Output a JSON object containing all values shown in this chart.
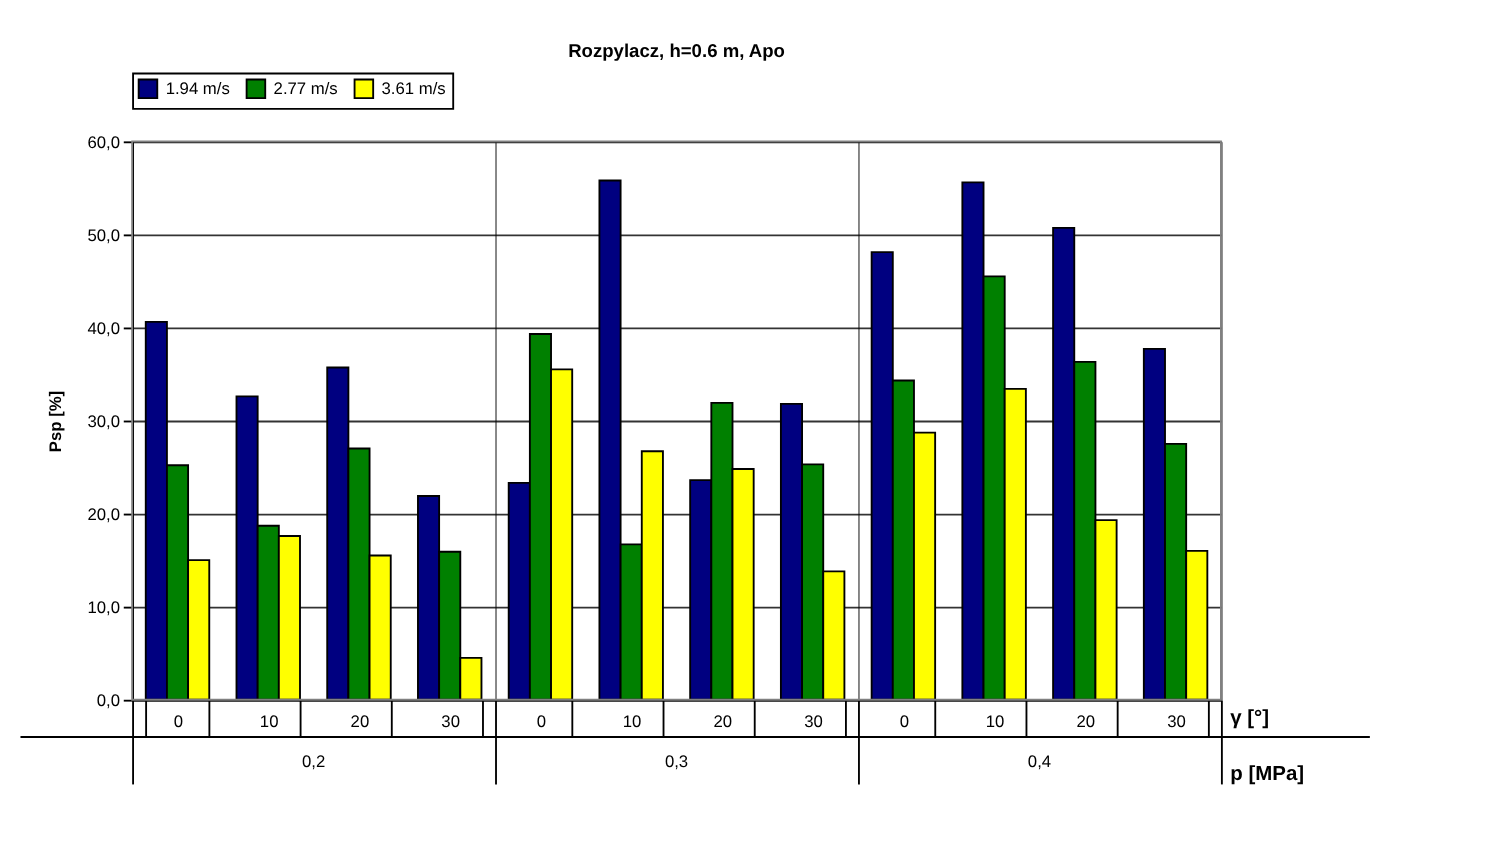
{
  "chart_data": {
    "type": "bar",
    "title": "Rozpylacz, h=0.6 m, Apo",
    "xlabel": "γ [°]",
    "ylabel": "Psp [%]",
    "categories": [
      "0",
      "10",
      "20",
      "30",
      "0",
      "10",
      "20",
      "30",
      "0",
      "10",
      "20",
      "30"
    ],
    "series": [
      {
        "name": "1.94 m/s",
        "color": "#000080",
        "values": [
          40.6,
          32.6,
          35.7,
          21.9,
          23.3,
          55.8,
          23.6,
          31.8,
          48.1,
          55.6,
          50.7,
          37.7
        ]
      },
      {
        "name": "2.77 m/s",
        "color": "#008000",
        "values": [
          25.2,
          18.7,
          27.0,
          15.9,
          39.3,
          16.7,
          31.9,
          25.3,
          34.3,
          45.5,
          36.3,
          27.5
        ]
      },
      {
        "name": "3.61 m/s",
        "color": "#ffff00",
        "values": [
          15.0,
          17.6,
          15.5,
          4.5,
          35.5,
          26.7,
          24.8,
          13.8,
          28.7,
          33.4,
          19.3,
          16.0
        ]
      }
    ],
    "ylim": [
      0,
      60
    ],
    "yticks": [
      {
        "value": 0,
        "label": "0,0"
      },
      {
        "value": 10,
        "label": "10,0"
      },
      {
        "value": 20,
        "label": "20,0"
      },
      {
        "value": 30,
        "label": "30,0"
      },
      {
        "value": 40,
        "label": "40,0"
      },
      {
        "value": 50,
        "label": "50,0"
      },
      {
        "value": 60,
        "label": "60,0"
      }
    ],
    "annotations": [
      "0,2",
      "0,3",
      "0,4",
      "p [MPa]"
    ],
    "grid": "y",
    "legend": "top"
  }
}
